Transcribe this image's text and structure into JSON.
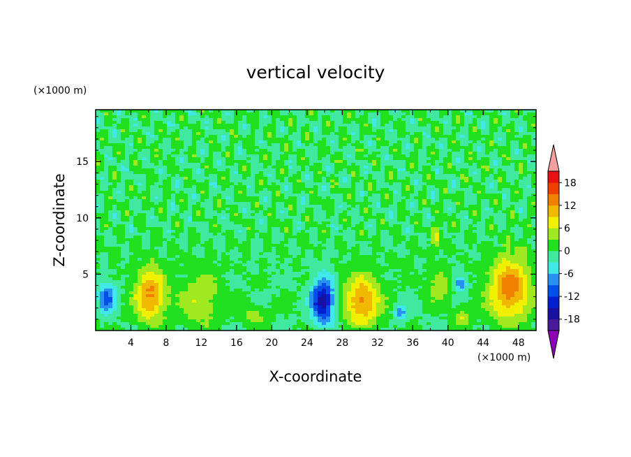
{
  "chart_data": {
    "type": "heatmap",
    "title": "vertical velocity",
    "xlabel": "X-coordinate",
    "ylabel": "Z-coordinate",
    "x_unit": "(×1000 m)",
    "y_unit": "(×1000 m)",
    "xlim": [
      0,
      50
    ],
    "ylim": [
      0,
      19.6
    ],
    "x_ticks": [
      4,
      8,
      12,
      16,
      20,
      24,
      28,
      32,
      36,
      40,
      44,
      48
    ],
    "y_ticks": [
      5,
      10,
      15
    ],
    "colorbar": {
      "ticks": [
        18,
        12,
        6,
        0,
        -6,
        -12,
        -18
      ],
      "levels": [
        -21,
        -18,
        -15,
        -12,
        -9,
        -6,
        -3,
        0,
        3,
        6,
        9,
        12,
        15,
        18,
        21
      ],
      "colors": [
        "#8b00b8",
        "#4a1a9a",
        "#1a10a0",
        "#0020d0",
        "#0050e8",
        "#2890f0",
        "#40e8e8",
        "#40e8a0",
        "#20e020",
        "#a0e820",
        "#f0f000",
        "#f0b800",
        "#f08000",
        "#f04000",
        "#e81010",
        "#f4a0a0"
      ],
      "extend": "both"
    },
    "background_value": 0,
    "features": [
      {
        "x": 1.3,
        "z": 2.9,
        "value": -10,
        "sx": 0.7,
        "sz": 1.0
      },
      {
        "x": 6.2,
        "z": 3.1,
        "value": 13,
        "sx": 1.2,
        "sz": 1.6
      },
      {
        "x": 11.8,
        "z": 2.8,
        "value": 6,
        "sx": 1.6,
        "sz": 1.6
      },
      {
        "x": 18.0,
        "z": 1.3,
        "value": 5,
        "sx": 1.0,
        "sz": 0.6
      },
      {
        "x": 25.8,
        "z": 2.6,
        "value": -17,
        "sx": 0.9,
        "sz": 1.4
      },
      {
        "x": 30.2,
        "z": 2.6,
        "value": 13,
        "sx": 1.4,
        "sz": 1.6
      },
      {
        "x": 34.6,
        "z": 1.6,
        "value": -8,
        "sx": 0.5,
        "sz": 0.5
      },
      {
        "x": 39.0,
        "z": 4.0,
        "value": 6,
        "sx": 0.8,
        "sz": 1.0
      },
      {
        "x": 41.4,
        "z": 4.2,
        "value": -9,
        "sx": 0.5,
        "sz": 0.5
      },
      {
        "x": 41.6,
        "z": 1.2,
        "value": 6,
        "sx": 0.6,
        "sz": 0.6
      },
      {
        "x": 47.0,
        "z": 3.7,
        "value": 14,
        "sx": 1.6,
        "sz": 2.0
      },
      {
        "x": 38.8,
        "z": 8.4,
        "value": 5,
        "sx": 0.5,
        "sz": 0.9
      }
    ]
  }
}
